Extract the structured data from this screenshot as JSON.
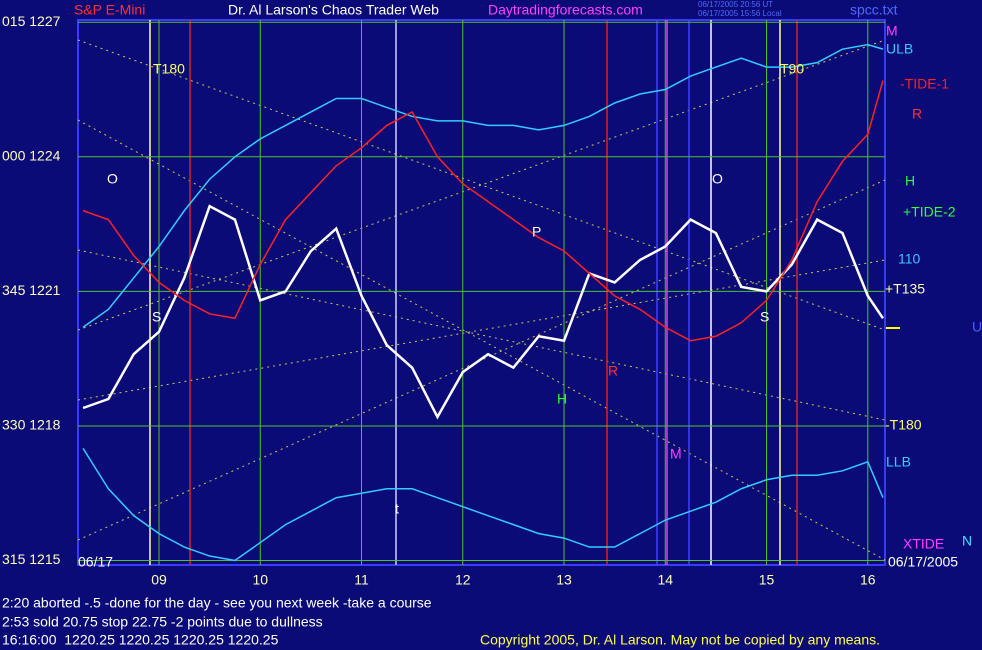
{
  "chart_data": {
    "type": "line",
    "header": {
      "instrument": "S&P E-Mini",
      "title": "Dr. Al Larson's Chaos Trader Web",
      "site": "Daytradingforecasts.com",
      "time_ut": "06/17/2005 20:56 UT",
      "time_local": "06/17/2005 15:56 Local",
      "file": "spcc.txt"
    },
    "x": [
      8.25,
      8.5,
      8.75,
      9,
      9.25,
      9.5,
      9.75,
      10,
      10.25,
      10.5,
      10.75,
      11,
      11.25,
      11.5,
      11.75,
      12,
      12.25,
      12.5,
      12.75,
      13,
      13.25,
      13.5,
      13.75,
      14,
      14.25,
      14.5,
      14.75,
      15,
      15.25,
      15.5,
      15.75,
      16,
      16.15
    ],
    "series": [
      {
        "color": "#ffffff",
        "values": [
          1218.4,
          1218.6,
          1219.6,
          1220.1,
          1221.3,
          1222.9,
          1222.6,
          1220.8,
          1221.0,
          1221.9,
          1222.4,
          1220.9,
          1219.8,
          1219.3,
          1218.2,
          1219.2,
          1219.6,
          1219.3,
          1220.0,
          1219.9,
          1221.4,
          1221.2,
          1221.7,
          1222.0,
          1222.6,
          1222.3,
          1221.1,
          1221.0,
          1221.6,
          1222.6,
          1222.3,
          1220.9,
          1220.4
        ]
      },
      {
        "name": "ULB",
        "color": "#33ccff",
        "values": [
          1220.2,
          1220.6,
          1221.3,
          1222.0,
          1222.8,
          1223.5,
          1224.0,
          1224.4,
          1224.7,
          1225.0,
          1225.3,
          1225.3,
          1225.1,
          1224.9,
          1224.8,
          1224.8,
          1224.7,
          1224.7,
          1224.6,
          1224.7,
          1224.9,
          1225.2,
          1225.4,
          1225.5,
          1225.8,
          1226.0,
          1226.2,
          1226.0,
          1226.0,
          1226.1,
          1226.4,
          1226.5,
          1226.4
        ]
      },
      {
        "name": "LLB",
        "color": "#33ccff",
        "values": [
          1217.5,
          1216.6,
          1216.0,
          1215.6,
          1215.3,
          1215.1,
          1215.0,
          1215.4,
          1215.8,
          1216.1,
          1216.4,
          1216.5,
          1216.6,
          1216.6,
          1216.4,
          1216.2,
          1216.0,
          1215.8,
          1215.6,
          1215.5,
          1215.3,
          1215.3,
          1215.6,
          1215.9,
          1216.1,
          1216.3,
          1216.6,
          1216.8,
          1216.9,
          1216.9,
          1217.0,
          1217.2,
          1216.4
        ]
      },
      {
        "name": "-TIDE-1",
        "color": "#ff2020",
        "values": [
          1222.8,
          1222.6,
          1221.8,
          1221.2,
          1220.8,
          1220.5,
          1220.4,
          1221.6,
          1222.6,
          1223.2,
          1223.8,
          1224.2,
          1224.7,
          1225.0,
          1224.0,
          1223.4,
          1223.0,
          1222.6,
          1222.2,
          1221.9,
          1221.4,
          1220.9,
          1220.6,
          1220.2,
          1219.9,
          1220.0,
          1220.3,
          1220.8,
          1221.7,
          1223.0,
          1223.9,
          1224.5,
          1225.7
        ]
      }
    ],
    "xlim": [
      8.2,
      16.17
    ],
    "xticks": [
      {
        "value": 9,
        "label": "09"
      },
      10,
      11,
      12,
      13,
      14,
      15,
      16
    ],
    "ylim": [
      1214.9,
      1227.05
    ],
    "yticks": [
      {
        "value": 1227,
        "label": "015 1227"
      },
      {
        "value": 1224,
        "label": "000 1224"
      },
      {
        "value": 1221,
        "label": "345 1221"
      },
      {
        "value": 1218,
        "label": "330 1218"
      },
      {
        "value": 1215,
        "label": "315 1215"
      }
    ],
    "grid": true,
    "annotations": [
      "T180",
      "T90",
      "O",
      "O",
      "P",
      "S",
      "S",
      "R",
      "R",
      "H",
      "H",
      "M",
      "M",
      "t",
      "U",
      "N",
      "110",
      "+T135",
      "-T180",
      "+TIDE-2",
      "XTIDE",
      "06/17",
      "06/17/2005"
    ],
    "notes": [
      "2:20 aborted -.5 -done for the day - see you next week -take a course",
      "2:53 sold 20.75 stop 22.75 -2 points due to dullness",
      "16:16:00  1220.25 1220.25 1220.25 1220.25"
    ],
    "copyright": "Copyright 2005, Dr. Al Larson. May not be copied by any means."
  }
}
